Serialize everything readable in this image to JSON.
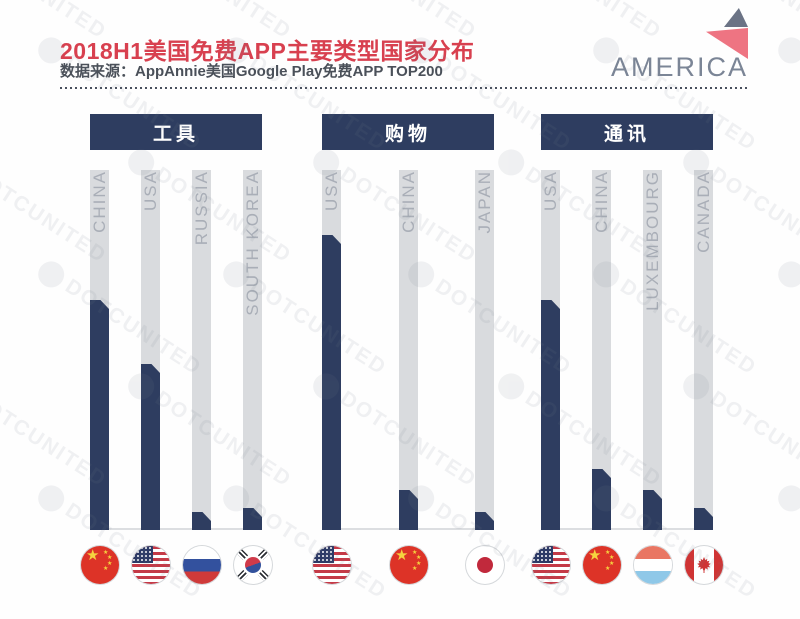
{
  "header": {
    "title": "2018H1美国免费APP主要类型国家分布",
    "subtitle": "数据来源：AppAnnie美国Google Play免费APP TOP200",
    "brand": "AMERICA"
  },
  "watermark": {
    "text": "DOTCUNITED"
  },
  "colors": {
    "title_red": "#d8404f",
    "navy": "#2e3d60",
    "track_gray": "#d9dbde",
    "brand_gray": "#7b8596",
    "logo_pink": "#ee7482",
    "logo_slate": "#6b7385"
  },
  "chart_data": {
    "type": "bar",
    "title": "2018H1美国免费APP主要类型国家分布",
    "source": "AppAnnie美国Google Play免费APP TOP200",
    "orientation": "vertical",
    "ylabel": "",
    "xlabel": "",
    "axis_shown": false,
    "unit": "estimated share of full bar height, % (no numeric axis printed)",
    "ylim": [
      0,
      100
    ],
    "legend": "none",
    "groups": [
      {
        "label": "工具",
        "bars": [
          {
            "country": "CHINA",
            "flag": "china",
            "value": 64
          },
          {
            "country": "USA",
            "flag": "usa",
            "value": 46
          },
          {
            "country": "RUSSIA",
            "flag": "russia",
            "value": 5
          },
          {
            "country": "SOUTH KOREA",
            "flag": "south-korea",
            "value": 6
          }
        ]
      },
      {
        "label": "购物",
        "bars": [
          {
            "country": "USA",
            "flag": "usa",
            "value": 82
          },
          {
            "country": "CHINA",
            "flag": "china",
            "value": 11
          },
          {
            "country": "JAPAN",
            "flag": "japan",
            "value": 5
          }
        ]
      },
      {
        "label": "通讯",
        "bars": [
          {
            "country": "USA",
            "flag": "usa",
            "value": 64
          },
          {
            "country": "CHINA",
            "flag": "china",
            "value": 17
          },
          {
            "country": "LUXEMBOURG",
            "flag": "luxembourg",
            "value": 11
          },
          {
            "country": "CANADA",
            "flag": "canada",
            "value": 6
          }
        ]
      }
    ]
  }
}
